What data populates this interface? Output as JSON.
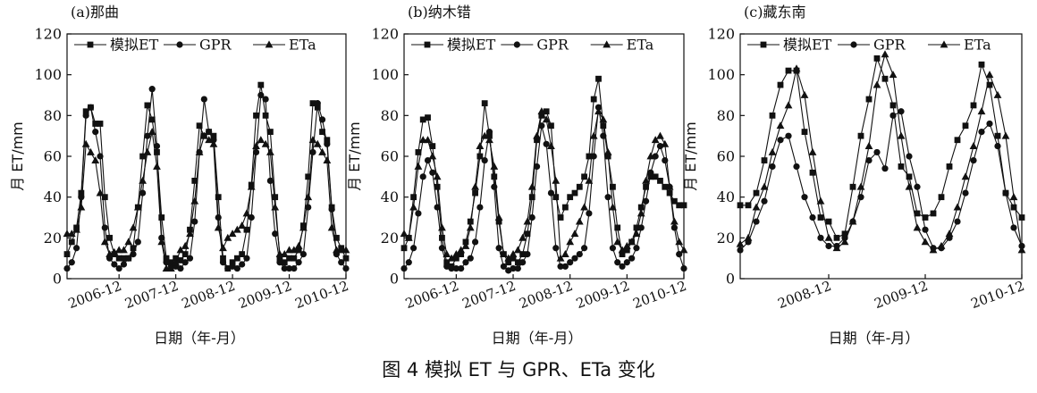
{
  "caption": "图 4 模拟 ET 与 GPR、ETa 变化",
  "chart_data": [
    {
      "type": "line",
      "title": "(a)那曲",
      "xlabel": "日期（年-月）",
      "ylabel": "月 ET/mm",
      "ylim": [
        0,
        120
      ],
      "yticks": [
        "0",
        "20",
        "40",
        "60",
        "80",
        "100",
        "120"
      ],
      "x_tick_labels": [
        "2006-12",
        "2007-12",
        "2008-12",
        "2009-12",
        "2010-12"
      ],
      "x_range": [
        "2006-01",
        "2010-12"
      ],
      "x_tick_dates": [
        "2006-12",
        "2007-12",
        "2008-12",
        "2009-12",
        "2010-12"
      ],
      "legend_position": "top",
      "grid": false,
      "dates": [
        "2006-01",
        "2006-02",
        "2006-03",
        "2006-04",
        "2006-05",
        "2006-06",
        "2006-07",
        "2006-08",
        "2006-09",
        "2006-10",
        "2006-11",
        "2006-12",
        "2007-01",
        "2007-02",
        "2007-03",
        "2007-04",
        "2007-05",
        "2007-06",
        "2007-07",
        "2007-08",
        "2007-09",
        "2007-10",
        "2007-11",
        "2007-12",
        "2008-01",
        "2008-02",
        "2008-03",
        "2008-04",
        "2008-05",
        "2008-06",
        "2008-07",
        "2008-08",
        "2008-09",
        "2008-10",
        "2008-11",
        "2008-12",
        "2009-01",
        "2009-02",
        "2009-03",
        "2009-04",
        "2009-05",
        "2009-06",
        "2009-07",
        "2009-08",
        "2009-09",
        "2009-10",
        "2009-11",
        "2009-12",
        "2010-01",
        "2010-02",
        "2010-03",
        "2010-04",
        "2010-05",
        "2010-06",
        "2010-07",
        "2010-08",
        "2010-09",
        "2010-10",
        "2010-11",
        "2010-12"
      ],
      "series": [
        {
          "name": "模拟ET",
          "marker": "square",
          "values": [
            12,
            18,
            25,
            42,
            82,
            84,
            76,
            76,
            40,
            20,
            12,
            10,
            10,
            10,
            15,
            35,
            60,
            85,
            78,
            62,
            30,
            10,
            8,
            10,
            9,
            12,
            24,
            48,
            75,
            70,
            72,
            70,
            40,
            10,
            5,
            8,
            10,
            12,
            24,
            46,
            80,
            95,
            80,
            72,
            40,
            10,
            8,
            10,
            10,
            14,
            26,
            50,
            86,
            84,
            72,
            68,
            35,
            20,
            15,
            10
          ]
        },
        {
          "name": "GPR",
          "marker": "circle",
          "values": [
            5,
            8,
            15,
            40,
            80,
            84,
            72,
            60,
            25,
            10,
            7,
            5,
            7,
            10,
            12,
            18,
            42,
            70,
            93,
            65,
            20,
            8,
            6,
            6,
            5,
            8,
            10,
            28,
            62,
            88,
            72,
            68,
            30,
            8,
            5,
            6,
            5,
            7,
            10,
            30,
            62,
            90,
            88,
            48,
            22,
            8,
            5,
            5,
            5,
            8,
            12,
            35,
            62,
            86,
            78,
            66,
            34,
            12,
            8,
            5
          ]
        },
        {
          "name": "ETa",
          "marker": "triangle",
          "values": [
            22,
            22,
            24,
            35,
            66,
            62,
            58,
            42,
            18,
            12,
            13,
            14,
            14,
            18,
            25,
            35,
            48,
            62,
            72,
            55,
            18,
            5,
            5,
            8,
            14,
            16,
            22,
            38,
            62,
            70,
            68,
            66,
            25,
            15,
            20,
            22,
            24,
            26,
            32,
            45,
            65,
            68,
            66,
            62,
            35,
            12,
            12,
            14,
            14,
            16,
            25,
            40,
            68,
            66,
            62,
            58,
            25,
            14,
            14,
            14
          ]
        }
      ]
    },
    {
      "type": "line",
      "title": "(b)纳木错",
      "xlabel": "日期（年-月）",
      "ylabel": "月 ET/mm",
      "ylim": [
        0,
        120
      ],
      "yticks": [
        "0",
        "20",
        "40",
        "60",
        "80",
        "100",
        "120"
      ],
      "x_tick_labels": [
        "2006-12",
        "2007-12",
        "2008-12",
        "2009-12",
        "2010-12"
      ],
      "x_range": [
        "2006-01",
        "2010-12"
      ],
      "x_tick_dates": [
        "2006-12",
        "2007-12",
        "2008-12",
        "2009-12",
        "2010-12"
      ],
      "legend_position": "top",
      "grid": false,
      "dates": [
        "2006-01",
        "2006-02",
        "2006-03",
        "2006-04",
        "2006-05",
        "2006-06",
        "2006-07",
        "2006-08",
        "2006-09",
        "2006-10",
        "2006-11",
        "2006-12",
        "2007-01",
        "2007-02",
        "2007-03",
        "2007-04",
        "2007-05",
        "2007-06",
        "2007-07",
        "2007-08",
        "2007-09",
        "2007-10",
        "2007-11",
        "2007-12",
        "2008-01",
        "2008-02",
        "2008-03",
        "2008-04",
        "2008-05",
        "2008-06",
        "2008-07",
        "2008-08",
        "2008-09",
        "2008-10",
        "2008-11",
        "2008-12",
        "2009-01",
        "2009-02",
        "2009-03",
        "2009-04",
        "2009-05",
        "2009-06",
        "2009-07",
        "2009-08",
        "2009-09",
        "2009-10",
        "2009-11",
        "2009-12",
        "2010-01",
        "2010-02",
        "2010-03",
        "2010-04",
        "2010-05",
        "2010-06",
        "2010-07",
        "2010-08",
        "2010-09",
        "2010-10",
        "2010-11",
        "2010-12"
      ],
      "series": [
        {
          "name": "模拟ET",
          "marker": "square",
          "values": [
            15,
            20,
            40,
            62,
            78,
            79,
            65,
            45,
            20,
            8,
            6,
            10,
            12,
            18,
            28,
            42,
            60,
            86,
            70,
            50,
            28,
            12,
            8,
            10,
            8,
            12,
            22,
            40,
            68,
            80,
            82,
            75,
            40,
            30,
            35,
            40,
            42,
            45,
            50,
            60,
            88,
            98,
            75,
            60,
            45,
            25,
            12,
            14,
            18,
            25,
            35,
            45,
            50,
            50,
            48,
            45,
            42,
            38,
            36,
            36
          ]
        },
        {
          "name": "GPR",
          "marker": "circle",
          "values": [
            5,
            8,
            15,
            32,
            50,
            58,
            52,
            35,
            15,
            6,
            5,
            5,
            5,
            8,
            10,
            18,
            35,
            58,
            72,
            45,
            15,
            6,
            4,
            5,
            5,
            8,
            12,
            30,
            55,
            75,
            66,
            42,
            15,
            6,
            6,
            8,
            10,
            12,
            15,
            32,
            60,
            84,
            70,
            40,
            15,
            8,
            6,
            8,
            10,
            15,
            25,
            38,
            52,
            60,
            65,
            58,
            45,
            25,
            12,
            5
          ]
        },
        {
          "name": "ETa",
          "marker": "triangle",
          "values": [
            22,
            20,
            35,
            55,
            68,
            68,
            60,
            50,
            25,
            12,
            10,
            12,
            14,
            16,
            25,
            45,
            65,
            70,
            68,
            55,
            30,
            12,
            10,
            12,
            14,
            20,
            28,
            45,
            70,
            82,
            78,
            65,
            48,
            10,
            12,
            18,
            22,
            28,
            35,
            48,
            70,
            82,
            78,
            62,
            35,
            18,
            14,
            16,
            18,
            22,
            32,
            48,
            60,
            68,
            70,
            66,
            45,
            28,
            18,
            14
          ]
        }
      ]
    },
    {
      "type": "line",
      "title": "(c)藏东南",
      "xlabel": "日期（年-月）",
      "ylabel": "月 ET/mm",
      "ylim": [
        0,
        120
      ],
      "yticks": [
        "0",
        "20",
        "40",
        "60",
        "80",
        "100",
        "120"
      ],
      "x_tick_labels": [
        "2008-12",
        "2009-12",
        "2010-12"
      ],
      "x_range": [
        "2008-01",
        "2010-12"
      ],
      "x_tick_dates": [
        "2008-12",
        "2009-12",
        "2010-12"
      ],
      "legend_position": "top",
      "grid": false,
      "dates": [
        "2008-01",
        "2008-02",
        "2008-03",
        "2008-04",
        "2008-05",
        "2008-06",
        "2008-07",
        "2008-08",
        "2008-09",
        "2008-10",
        "2008-11",
        "2008-12",
        "2009-01",
        "2009-02",
        "2009-03",
        "2009-04",
        "2009-05",
        "2009-06",
        "2009-07",
        "2009-08",
        "2009-09",
        "2009-10",
        "2009-11",
        "2009-12",
        "2010-01",
        "2010-02",
        "2010-03",
        "2010-04",
        "2010-05",
        "2010-06",
        "2010-07",
        "2010-08",
        "2010-09",
        "2010-10",
        "2010-11",
        "2010-12"
      ],
      "series": [
        {
          "name": "模拟ET",
          "marker": "square",
          "values": [
            36,
            36,
            42,
            58,
            80,
            95,
            102,
            102,
            72,
            52,
            30,
            28,
            20,
            22,
            45,
            70,
            88,
            108,
            98,
            85,
            55,
            50,
            32,
            30,
            32,
            40,
            55,
            68,
            75,
            85,
            105,
            95,
            70,
            42,
            35,
            30
          ]
        },
        {
          "name": "GPR",
          "marker": "circle",
          "values": [
            14,
            18,
            28,
            38,
            55,
            68,
            70,
            55,
            40,
            30,
            20,
            16,
            16,
            20,
            28,
            40,
            58,
            62,
            54,
            80,
            82,
            60,
            45,
            24,
            15,
            15,
            20,
            28,
            42,
            58,
            72,
            76,
            65,
            42,
            25,
            16
          ]
        },
        {
          "name": "ETa",
          "marker": "triangle",
          "values": [
            17,
            20,
            35,
            45,
            62,
            75,
            85,
            103,
            90,
            62,
            38,
            20,
            15,
            18,
            28,
            45,
            65,
            95,
            110,
            100,
            70,
            45,
            25,
            18,
            14,
            16,
            22,
            35,
            50,
            65,
            82,
            100,
            90,
            70,
            40,
            14
          ]
        }
      ]
    }
  ]
}
